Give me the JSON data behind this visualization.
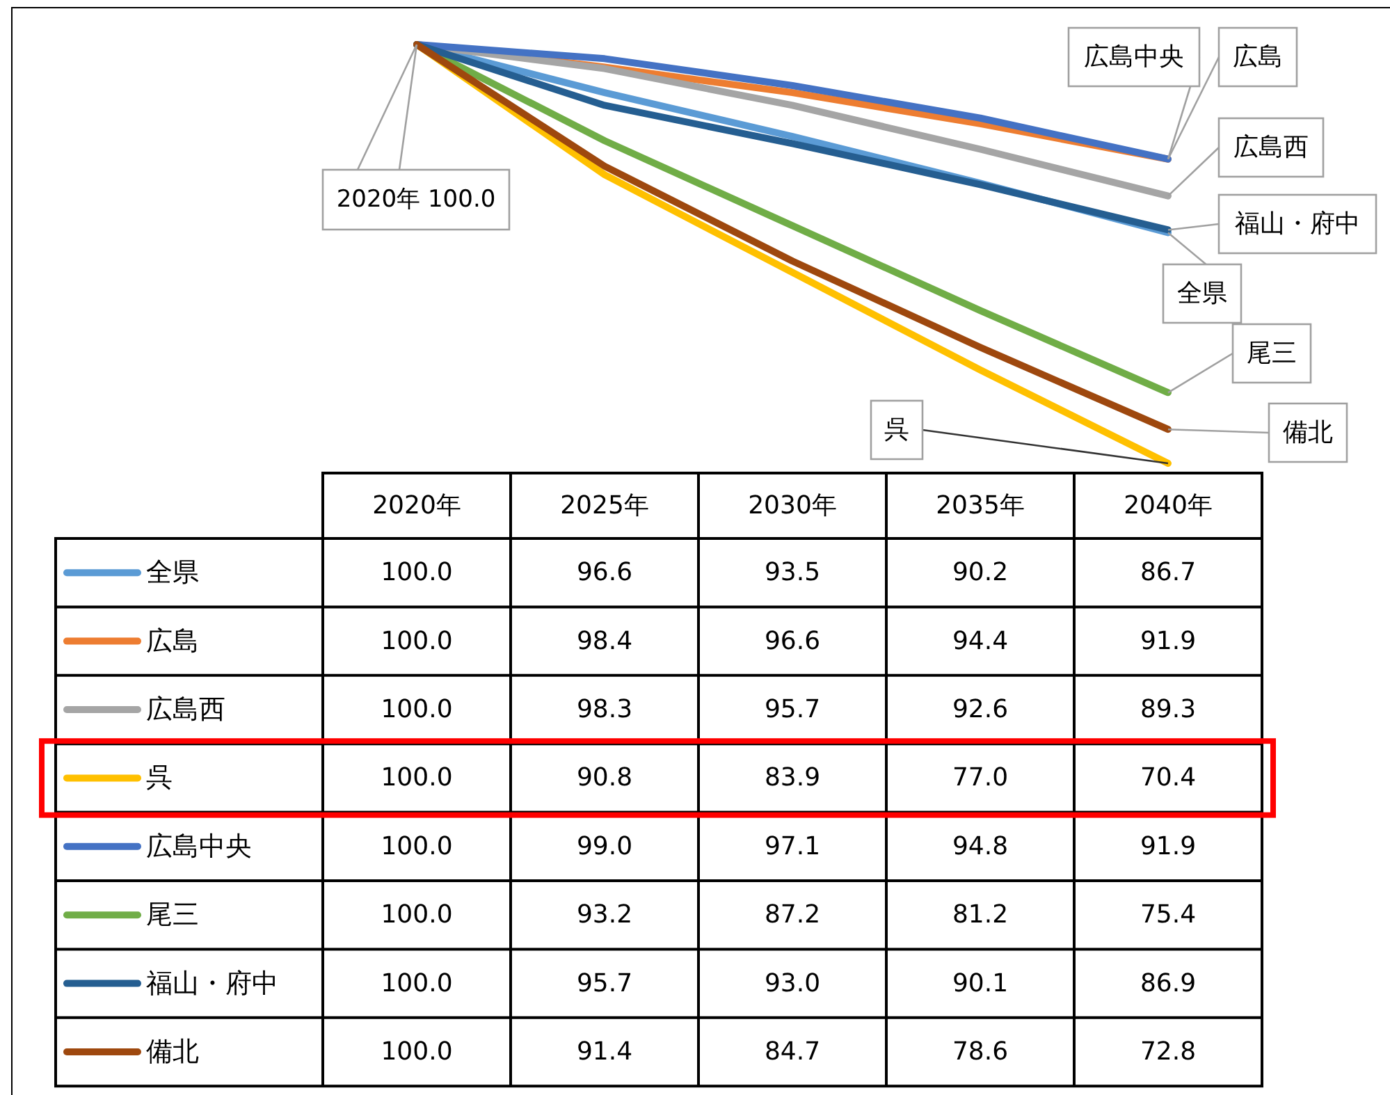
{
  "chart_data": {
    "type": "line",
    "categories": [
      "2020年",
      "2025年",
      "2030年",
      "2035年",
      "2040年"
    ],
    "legend": "bottom left",
    "marker": "none",
    "line_style": "solid",
    "annotations": [
      {
        "text": "2020年 100.0",
        "x": "2020年",
        "y": 100
      }
    ],
    "series": [
      {
        "name": "全県",
        "color": "#5b9bd5",
        "values": [
          100.0,
          96.6,
          93.5,
          90.2,
          86.7
        ],
        "value_labels": [
          "100.0",
          "96.6",
          "93.5",
          "90.2",
          "86.7"
        ]
      },
      {
        "name": "広島",
        "color": "#ed7d31",
        "values": [
          100.0,
          98.4,
          96.6,
          94.4,
          91.9
        ],
        "value_labels": [
          "100.0",
          "98.4",
          "96.6",
          "94.4",
          "91.9"
        ]
      },
      {
        "name": "広島西",
        "color": "#a5a5a5",
        "values": [
          100.0,
          98.3,
          95.7,
          92.6,
          89.3
        ],
        "value_labels": [
          "100.0",
          "98.3",
          "95.7",
          "92.6",
          "89.3"
        ]
      },
      {
        "name": "呉",
        "color": "#ffc000",
        "values": [
          100.0,
          90.8,
          83.9,
          77.0,
          70.4
        ],
        "value_labels": [
          "100.0",
          "90.8",
          "83.9",
          "77.0",
          "70.4"
        ]
      },
      {
        "name": "広島中央",
        "color": "#4472c4",
        "values": [
          100.0,
          99.0,
          97.1,
          94.8,
          91.9
        ],
        "value_labels": [
          "100.0",
          "99.0",
          "97.1",
          "94.8",
          "91.9"
        ]
      },
      {
        "name": "尾三",
        "color": "#70ad47",
        "values": [
          100.0,
          93.2,
          87.2,
          81.2,
          75.4
        ],
        "value_labels": [
          "100.0",
          "93.2",
          "87.2",
          "81.2",
          "75.4"
        ]
      },
      {
        "name": "福山・府中",
        "color": "#255e91",
        "values": [
          100.0,
          95.7,
          93.0,
          90.1,
          86.9
        ],
        "value_labels": [
          "100.0",
          "95.7",
          "93.0",
          "90.1",
          "86.9"
        ]
      },
      {
        "name": "備北",
        "color": "#9e480e",
        "values": [
          100.0,
          91.4,
          84.7,
          78.6,
          72.8
        ],
        "value_labels": [
          "100.0",
          "91.4",
          "84.7",
          "78.6",
          "72.8"
        ]
      }
    ]
  }
}
